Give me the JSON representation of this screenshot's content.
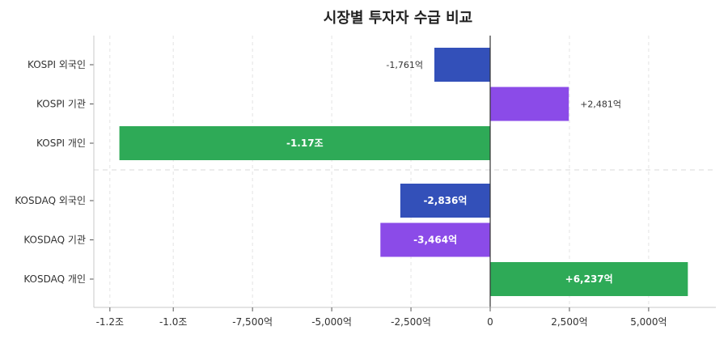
{
  "chart_data": {
    "type": "bar",
    "orientation": "horizontal",
    "title": "시장별 투자자 수급 비교",
    "unit": "억",
    "categories": [
      "KOSPI 외국인",
      "KOSPI 기관",
      "KOSPI 개인",
      "KOSDAQ 외국인",
      "KOSDAQ 기관",
      "KOSDAQ 개인"
    ],
    "values": [
      -1761,
      2481,
      -11700,
      -2836,
      -3464,
      6237
    ],
    "value_labels": [
      "-1,761억",
      "+2,481억",
      "-1.17조",
      "-2,836억",
      "-3,464억",
      "+6,237억"
    ],
    "label_inside": [
      false,
      false,
      true,
      true,
      true,
      true
    ],
    "xlim": [
      -12500,
      7000
    ],
    "xticks": [
      -12000,
      -10000,
      -7500,
      -5000,
      -2500,
      0,
      2500,
      5000
    ],
    "xtick_labels": [
      "-1.2조",
      "-1.0조",
      "-7,500억",
      "-5,000억",
      "-2,500억",
      "0",
      "2,500억",
      "5,000억"
    ],
    "grid": true,
    "group_separator_after_index": 2,
    "colors": {
      "외국인": "#3350b9",
      "기관": "#8b4be8",
      "개인": "#2eaa57",
      "axis": "#333333",
      "grid": "#e3e3e3",
      "text": "#333333"
    }
  }
}
